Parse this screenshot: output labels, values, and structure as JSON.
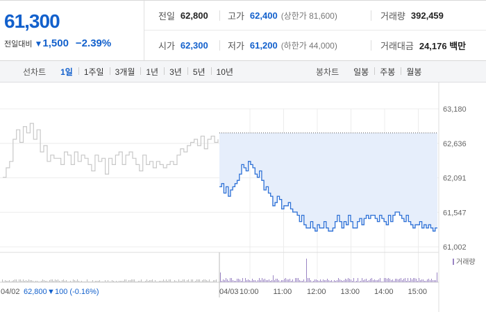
{
  "summary": {
    "price": "61,300",
    "change_label": "전일대비",
    "change_arrow": "▼",
    "change_amount": "1,500",
    "change_pct": "−2.39%",
    "stats": {
      "prev_close": {
        "label": "전일",
        "value": "62,800"
      },
      "high": {
        "label": "고가",
        "value": "62,400",
        "sub": "(상한가 81,600)"
      },
      "volume": {
        "label": "거래량",
        "value": "392,459"
      },
      "open": {
        "label": "시가",
        "value": "62,300"
      },
      "low": {
        "label": "저가",
        "value": "61,200",
        "sub": "(하한가 44,000)"
      },
      "trade_value": {
        "label": "거래대금",
        "value": "24,176 백만"
      }
    }
  },
  "tabs": {
    "line_title": "선차트",
    "line_tabs": [
      "1일",
      "1주일",
      "3개월",
      "1년",
      "3년",
      "5년",
      "10년"
    ],
    "line_active": 0,
    "candle_title": "봉차트",
    "candle_tabs": [
      "일봉",
      "주봉",
      "월봉"
    ]
  },
  "colors": {
    "accent": "#1260cc",
    "today_line": "#2b6fd6",
    "today_fill": "#e6eefb",
    "prev_line": "#c8c8c8",
    "volume_bar": "#9a84c4",
    "grid": "#ececec"
  },
  "chart_data": {
    "type": "line",
    "y_ticks": [
      "63,180",
      "62,636",
      "62,091",
      "61,547",
      "61,002"
    ],
    "ylim": [
      61002,
      63180
    ],
    "prev_close_ref": 62800,
    "x_ticks": [
      "04/03",
      "10:00",
      "11:00",
      "12:00",
      "13:00",
      "14:00",
      "15:00"
    ],
    "prev_day": {
      "date_label": "04/02",
      "close_label": "62,800",
      "change_arrow": "▼",
      "change_label": "100 (-0.16%)",
      "values": [
        62100,
        62250,
        62350,
        62700,
        62850,
        62650,
        62900,
        62800,
        62950,
        62700,
        62850,
        62500,
        62600,
        62350,
        62450,
        62400,
        62400,
        62300,
        62500,
        62450,
        62300,
        62500,
        62350,
        62450,
        62400,
        62300,
        62200,
        62450,
        62350,
        62400,
        62150,
        62400,
        62300,
        62450,
        62500,
        62300,
        62450,
        62500,
        62400,
        62300,
        62200,
        62450,
        62300,
        62350,
        62250,
        62350,
        62300,
        62250,
        62300,
        62350,
        62300,
        62450,
        62550,
        62500,
        62600,
        62650,
        62700,
        62600,
        62750,
        62550,
        62700,
        62750,
        62650,
        62700
      ]
    },
    "today": {
      "values": [
        61950,
        62000,
        61850,
        61950,
        61800,
        61900,
        61950,
        62000,
        62050,
        62150,
        62300,
        62250,
        62200,
        62350,
        62300,
        62250,
        62150,
        62100,
        62200,
        62050,
        61900,
        61950,
        61850,
        61800,
        61650,
        61700,
        61800,
        61750,
        61600,
        61650,
        61650,
        61700,
        61600,
        61550,
        61550,
        61500,
        61400,
        61500,
        61350,
        61300,
        61300,
        61400,
        61300,
        61250,
        61350,
        61300,
        61300,
        61400,
        61300,
        61250,
        61250,
        61300,
        61400,
        61500,
        61400,
        61300,
        61400,
        61350,
        61500,
        61400,
        61300,
        61300,
        61400,
        61450,
        61350,
        61450,
        61500,
        61450,
        61500,
        61500,
        61450,
        61400,
        61500,
        61450,
        61400,
        61350,
        61500,
        61400,
        61500,
        61550,
        61550,
        61500,
        61450,
        61400,
        61500,
        61400,
        61350,
        61300,
        61350,
        61350,
        61400,
        61300,
        61350,
        61300,
        61350,
        61300,
        61250,
        61300,
        61300
      ]
    },
    "volume_label": "거래량"
  }
}
